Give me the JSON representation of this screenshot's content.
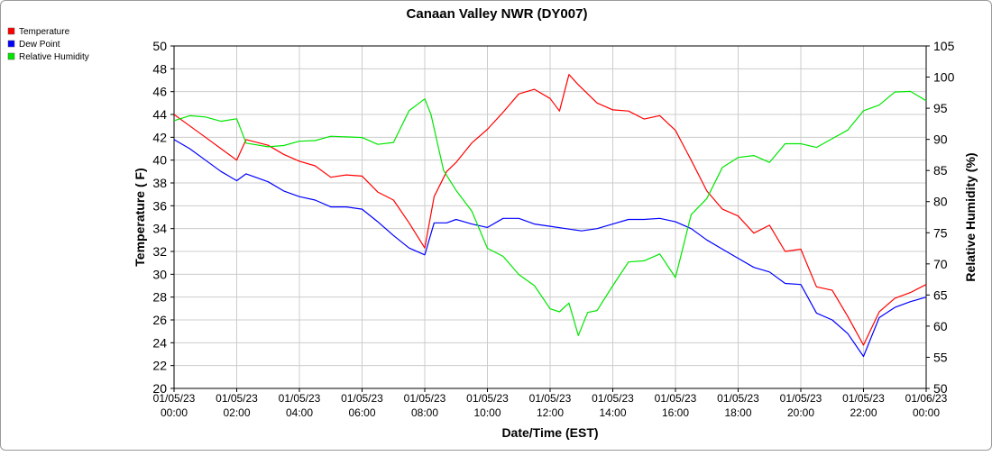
{
  "chart_data": {
    "type": "line",
    "title": "Canaan Valley NWR (DY007)",
    "xlabel": "Date/Time (EST)",
    "ylabel": "Temperature ( F)",
    "y2label": "Relative Humidity (%)",
    "xlim": [
      0,
      24
    ],
    "ylim": [
      20,
      50
    ],
    "y2lim": [
      50,
      105
    ],
    "yticks": [
      20,
      22,
      24,
      26,
      28,
      30,
      32,
      34,
      36,
      38,
      40,
      42,
      44,
      46,
      48,
      50
    ],
    "y2ticks": [
      50,
      55,
      60,
      65,
      70,
      75,
      80,
      85,
      90,
      95,
      100,
      105
    ],
    "xticks": [
      {
        "date": "01/05/23",
        "time": "00:00"
      },
      {
        "date": "01/05/23",
        "time": "02:00"
      },
      {
        "date": "01/05/23",
        "time": "04:00"
      },
      {
        "date": "01/05/23",
        "time": "06:00"
      },
      {
        "date": "01/05/23",
        "time": "08:00"
      },
      {
        "date": "01/05/23",
        "time": "10:00"
      },
      {
        "date": "01/05/23",
        "time": "12:00"
      },
      {
        "date": "01/05/23",
        "time": "14:00"
      },
      {
        "date": "01/05/23",
        "time": "16:00"
      },
      {
        "date": "01/05/23",
        "time": "18:00"
      },
      {
        "date": "01/05/23",
        "time": "20:00"
      },
      {
        "date": "01/05/23",
        "time": "22:00"
      },
      {
        "date": "01/06/23",
        "time": "00:00"
      }
    ],
    "grid": true,
    "legend_position": "top-left",
    "series": [
      {
        "name": "Temperature",
        "color": "#ff0000",
        "axis": "left",
        "x": [
          0,
          0.5,
          1,
          1.5,
          2,
          2.3,
          3,
          3.5,
          4,
          4.5,
          5,
          5.5,
          6,
          6.5,
          7,
          7.5,
          8,
          8.3,
          8.7,
          9,
          9.5,
          10,
          10.5,
          11,
          11.5,
          12,
          12.3,
          12.6,
          12.9,
          13.2,
          13.5,
          14,
          14.5,
          15,
          15.5,
          16,
          16.5,
          17,
          17.5,
          18,
          18.5,
          19,
          19.5,
          20,
          20.5,
          21,
          21.5,
          22,
          22.5,
          23,
          23.5,
          24
        ],
        "y": [
          44,
          43,
          42,
          41,
          40,
          41.8,
          41.3,
          40.5,
          39.9,
          39.5,
          38.5,
          38.7,
          38.6,
          37.2,
          36.5,
          34.5,
          32.3,
          36.8,
          39,
          39.8,
          41.5,
          42.7,
          44.2,
          45.8,
          46.2,
          45.4,
          44.3,
          47.5,
          46.6,
          45.8,
          45,
          44.4,
          44.3,
          43.6,
          43.9,
          42.6,
          40,
          37.3,
          35.7,
          35.1,
          33.6,
          34.3,
          32,
          32.2,
          28.9,
          28.6,
          26.3,
          23.8,
          26.7,
          27.9,
          28.4,
          29.1
        ]
      },
      {
        "name": "Dew Point",
        "color": "#0000ff",
        "axis": "left",
        "x": [
          0,
          0.5,
          1,
          1.5,
          2,
          2.3,
          3,
          3.5,
          4,
          4.5,
          5,
          5.5,
          6,
          6.5,
          7,
          7.5,
          8,
          8.3,
          8.7,
          9,
          9.5,
          10,
          10.5,
          11,
          11.5,
          12,
          12.5,
          13,
          13.5,
          14,
          14.5,
          15,
          15.5,
          16,
          16.5,
          17,
          17.5,
          18,
          18.5,
          19,
          19.5,
          20,
          20.5,
          21,
          21.5,
          22,
          22.5,
          23,
          23.5,
          24
        ],
        "y": [
          41.8,
          41,
          40,
          39,
          38.2,
          38.8,
          38.1,
          37.3,
          36.8,
          36.5,
          35.9,
          35.9,
          35.7,
          34.6,
          33.4,
          32.3,
          31.7,
          34.5,
          34.5,
          34.8,
          34.4,
          34.1,
          34.9,
          34.9,
          34.4,
          34.2,
          34,
          33.8,
          34,
          34.4,
          34.8,
          34.8,
          34.9,
          34.6,
          34,
          33,
          32.2,
          31.4,
          30.6,
          30.2,
          29.2,
          29.1,
          26.6,
          26,
          24.8,
          22.8,
          26.2,
          27.1,
          27.6,
          28
        ]
      },
      {
        "name": "Relative Humidity",
        "color": "#00e600",
        "axis": "right",
        "x": [
          0,
          0.5,
          1,
          1.5,
          2,
          2.3,
          3,
          3.5,
          4,
          4.5,
          5,
          5.5,
          6,
          6.5,
          7,
          7.5,
          8,
          8.2,
          8.6,
          9,
          9.5,
          10,
          10.5,
          11,
          11.5,
          12,
          12.3,
          12.6,
          12.9,
          13.2,
          13.5,
          14,
          14.5,
          15,
          15.5,
          16,
          16.5,
          17,
          17.5,
          18,
          18.5,
          19,
          19.5,
          20,
          20.5,
          21,
          21.5,
          22,
          22.5,
          23,
          23.5,
          24
        ],
        "y": [
          93,
          93.8,
          93.6,
          92.9,
          93.3,
          89.4,
          88.8,
          89,
          89.7,
          89.8,
          90.5,
          90.4,
          90.3,
          89.2,
          89.5,
          94.6,
          96.5,
          94,
          85,
          81.8,
          78.5,
          72.5,
          71.2,
          68.3,
          66.5,
          62.8,
          62.3,
          63.7,
          58.5,
          62.2,
          62.5,
          66.5,
          70.3,
          70.5,
          71.6,
          67.8,
          77.9,
          80.5,
          85.5,
          87.1,
          87.4,
          86.3,
          89.3,
          89.3,
          88.7,
          90.1,
          91.5,
          94.6,
          95.5,
          97.6,
          97.7,
          96.2
        ]
      }
    ]
  }
}
